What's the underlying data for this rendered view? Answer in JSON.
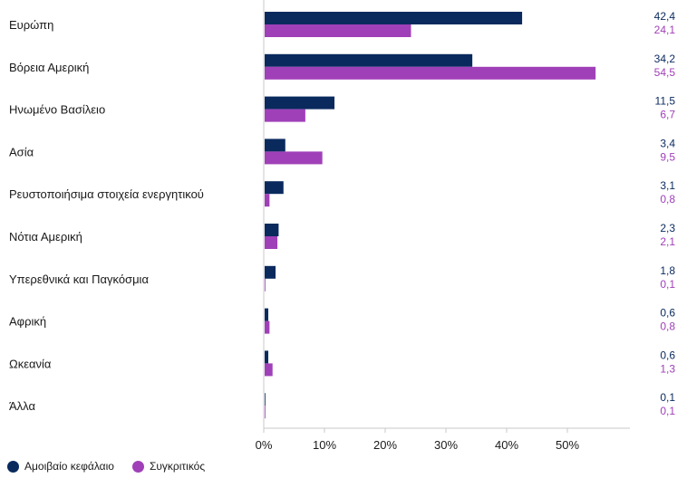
{
  "chart_data": {
    "type": "bar",
    "orientation": "horizontal",
    "categories": [
      "Ευρώπη",
      "Βόρεια Αμερική",
      "Ηνωμένο Βασίλειο",
      "Ασία",
      "Ρευστοποιήσιμα στοιχεία ενεργητικού",
      "Νότια Αμερική",
      "Υπερεθνικά και Παγκόσμια",
      "Αφρική",
      "Ωκεανία",
      "Άλλα"
    ],
    "series": [
      {
        "name": "Αμοιβαίο κεφάλαιο",
        "color": "#0a2a5e",
        "values": [
          42.4,
          34.2,
          11.5,
          3.4,
          3.1,
          2.3,
          1.8,
          0.6,
          0.6,
          0.1
        ],
        "labels": [
          "42,4",
          "34,2",
          "11,5",
          "3,4",
          "3,1",
          "2,3",
          "1,8",
          "0,6",
          "0,6",
          "0,1"
        ]
      },
      {
        "name": "Συγκριτικός",
        "color": "#a040b8",
        "values": [
          24.1,
          54.5,
          6.7,
          9.5,
          0.8,
          2.1,
          0.1,
          0.8,
          1.3,
          0.1
        ],
        "labels": [
          "24,1",
          "54,5",
          "6,7",
          "9,5",
          "0,8",
          "2,1",
          "0,1",
          "0,8",
          "1,3",
          "0,1"
        ]
      }
    ],
    "xlim": [
      0,
      60
    ],
    "xticks": [
      0,
      10,
      20,
      30,
      40,
      50
    ],
    "xtick_labels": [
      "0%",
      "10%",
      "20%",
      "30%",
      "40%",
      "50%"
    ],
    "grid": false,
    "legend_position": "bottom-left"
  },
  "legend": {
    "items": [
      {
        "label": "Αμοιβαίο κεφάλαιο",
        "color": "#0a2a5e"
      },
      {
        "label": "Συγκριτικός",
        "color": "#a040b8"
      }
    ]
  }
}
